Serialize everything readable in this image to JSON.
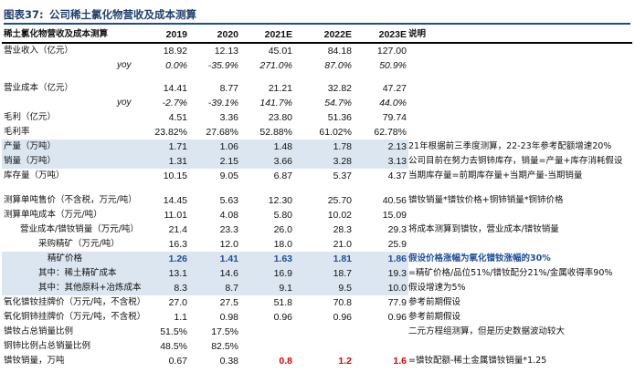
{
  "title": {
    "label": "图表37:",
    "text": "公司稀土氯化物营收及成本测算"
  },
  "header": {
    "label": "稀土氯化物营收及成本测算",
    "years": [
      "2019",
      "2020",
      "2021E",
      "2022E",
      "2023E"
    ],
    "note": "说明"
  },
  "rows": [
    {
      "label": "营业收入（亿元）",
      "v": [
        "18.92",
        "12.13",
        "45.01",
        "84.18",
        "127.00"
      ],
      "note": ""
    },
    {
      "label": "yoy",
      "v": [
        "0.0%",
        "-35.9%",
        "271.0%",
        "87.0%",
        "50.9%"
      ],
      "note": ""
    },
    {
      "label": "",
      "v": [
        "",
        "",
        "",
        "",
        ""
      ],
      "note": ""
    },
    {
      "label": "营业成本（亿元）",
      "v": [
        "14.41",
        "8.77",
        "21.21",
        "32.82",
        "47.27"
      ],
      "note": ""
    },
    {
      "label": "yoy",
      "v": [
        "-2.7%",
        "-39.1%",
        "141.7%",
        "54.7%",
        "44.0%"
      ],
      "note": ""
    },
    {
      "label": "毛利（亿元）",
      "v": [
        "4.51",
        "3.36",
        "23.80",
        "51.36",
        "79.74"
      ],
      "note": ""
    },
    {
      "label": "毛利率",
      "v": [
        "23.82%",
        "27.68%",
        "52.88%",
        "61.02%",
        "62.78%"
      ],
      "note": ""
    },
    {
      "label": "产量（万吨）",
      "v": [
        "1.71",
        "1.06",
        "1.48",
        "1.78",
        "2.13"
      ],
      "note": "21年根据前三季度测算，22-23年参考配额增速20%"
    },
    {
      "label": "销量（万吨）",
      "v": [
        "1.31",
        "2.15",
        "3.66",
        "3.28",
        "3.13"
      ],
      "note": "公司目前在努力去铜铈库存，销量=产量+库存消耗假设"
    },
    {
      "label": "库存量（万吨）",
      "v": [
        "10.15",
        "9.05",
        "6.87",
        "5.37",
        "4.37"
      ],
      "note": "当期库存量=前期库存量+当期产量-当期销量"
    },
    {
      "label": "",
      "v": [
        "",
        "",
        "",
        "",
        ""
      ],
      "note": ""
    },
    {
      "label": "测算单吨售价（不含税，万元/吨）",
      "v": [
        "14.45",
        "5.63",
        "12.30",
        "25.70",
        "40.56"
      ],
      "note": "镨钕销量*镨钕价格+铜铈销量*铜铈价格"
    },
    {
      "label": "测算单吨成本（万元/吨）",
      "v": [
        "11.01",
        "4.08",
        "5.80",
        "10.02",
        "15.09"
      ],
      "note": ""
    },
    {
      "label": "营业成本/镨钕销量（万元/吨）",
      "v": [
        "21.4",
        "23.3",
        "26.0",
        "28.3",
        "29.3"
      ],
      "note": "将成本测算到镨钕，营业成本/镨钕销量"
    },
    {
      "label": "采购精矿（万元/吨）",
      "v": [
        "16.3",
        "12.0",
        "18.0",
        "21.0",
        "25.9"
      ],
      "note": ""
    },
    {
      "label": "精矿价格",
      "v": [
        "1.26",
        "1.41",
        "1.63",
        "1.81",
        "1.86"
      ],
      "note": "假设价格涨幅为氧化镨钕涨幅的30%"
    },
    {
      "label": "其中：稀土精矿成本",
      "v": [
        "13.1",
        "14.6",
        "16.9",
        "18.7",
        "19.3"
      ],
      "note": "=精矿价格/品位51%/镨钕配分21%/金属收得率90%"
    },
    {
      "label": "其中：其他原料+冶炼成本",
      "v": [
        "8.3",
        "8.7",
        "9.1",
        "9.5",
        "10.0"
      ],
      "note": "假设增速为5%"
    },
    {
      "label": "氧化镨钕挂牌价（万元/吨，不含税）",
      "v": [
        "27.0",
        "27.5",
        "51.8",
        "70.8",
        "77.9"
      ],
      "note": "参考前期假设"
    },
    {
      "label": "氧化铜铈挂牌价（万元/吨，不含税）",
      "v": [
        "1.1",
        "0.98",
        "0.96",
        "0.96",
        "0.96"
      ],
      "note": "参考前期假设"
    },
    {
      "label": "镨钕占总销量比例",
      "v": [
        "51.5%",
        "17.5%",
        "",
        "",
        ""
      ],
      "note": "二元方程组测算，但是历史数据波动较大"
    },
    {
      "label": "铜铈比例占总销量比例",
      "v": [
        "48.5%",
        "82.5%",
        "",
        "",
        ""
      ],
      "note": ""
    },
    {
      "label": "镨钕销量，万吨",
      "v": [
        "0.67",
        "0.38",
        "0.8",
        "1.2",
        "1.6"
      ],
      "note": "=镨钕配额-稀土金属镨钕销量*1.25"
    }
  ]
}
